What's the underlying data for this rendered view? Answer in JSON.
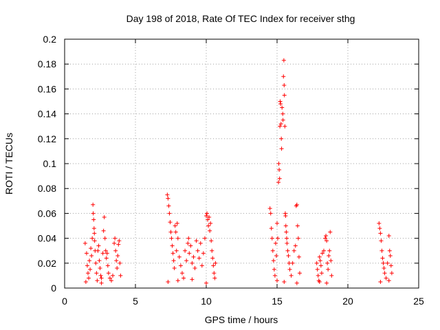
{
  "chart_data": {
    "type": "scatter",
    "title": "Day 198 of 2018, Rate Of TEC Index for receiver sthg",
    "xlabel": "GPS time / hours",
    "ylabel": "ROTI / TECUs",
    "xlim": [
      0,
      25
    ],
    "ylim": [
      0,
      0.2
    ],
    "grid": true,
    "marker": "+",
    "color": "#ff0000",
    "x_ticks": [
      0,
      5,
      10,
      15,
      20,
      25
    ],
    "x_tick_labels": [
      "0",
      "5",
      "10",
      "15",
      "20",
      "25"
    ],
    "y_ticks": [
      0,
      0.02,
      0.04,
      0.06,
      0.08,
      0.1,
      0.12,
      0.14,
      0.16,
      0.18,
      0.2
    ],
    "y_tick_labels": [
      "0",
      "0.02",
      "0.04",
      "0.06",
      "0.08",
      "0.1",
      "0.12",
      "0.14",
      "0.16",
      "0.18",
      "0.2"
    ],
    "series": [
      {
        "name": "ROTI",
        "points": [
          [
            1.45,
            0.036
          ],
          [
            1.55,
            0.028
          ],
          [
            1.6,
            0.018
          ],
          [
            1.65,
            0.012
          ],
          [
            1.7,
            0.008
          ],
          [
            1.75,
            0.022
          ],
          [
            1.8,
            0.015
          ],
          [
            1.85,
            0.032
          ],
          [
            1.9,
            0.026
          ],
          [
            1.95,
            0.04
          ],
          [
            2.0,
            0.067
          ],
          [
            2.02,
            0.06
          ],
          [
            2.05,
            0.055
          ],
          [
            2.08,
            0.048
          ],
          [
            2.1,
            0.044
          ],
          [
            2.12,
            0.038
          ],
          [
            2.15,
            0.03
          ],
          [
            2.2,
            0.02
          ],
          [
            2.25,
            0.012
          ],
          [
            2.3,
            0.006
          ],
          [
            2.35,
            0.03
          ],
          [
            2.4,
            0.034
          ],
          [
            2.45,
            0.022
          ],
          [
            2.5,
            0.016
          ],
          [
            2.55,
            0.01
          ],
          [
            2.6,
            0.008
          ],
          [
            2.7,
            0.028
          ],
          [
            2.75,
            0.046
          ],
          [
            2.8,
            0.057
          ],
          [
            2.85,
            0.04
          ],
          [
            2.9,
            0.03
          ],
          [
            2.95,
            0.024
          ],
          [
            3.0,
            0.028
          ],
          [
            3.05,
            0.018
          ],
          [
            3.1,
            0.012
          ],
          [
            3.2,
            0.008
          ],
          [
            3.3,
            0.006
          ],
          [
            3.4,
            0.01
          ],
          [
            3.5,
            0.036
          ],
          [
            3.55,
            0.04
          ],
          [
            3.6,
            0.03
          ],
          [
            3.65,
            0.022
          ],
          [
            3.7,
            0.016
          ],
          [
            3.75,
            0.026
          ],
          [
            3.8,
            0.035
          ],
          [
            3.85,
            0.038
          ],
          [
            3.9,
            0.02
          ],
          [
            3.95,
            0.01
          ],
          [
            1.5,
            0.005
          ],
          [
            2.6,
            0.004
          ],
          [
            7.25,
            0.075
          ],
          [
            7.3,
            0.072
          ],
          [
            7.35,
            0.066
          ],
          [
            7.4,
            0.06
          ],
          [
            7.45,
            0.053
          ],
          [
            7.5,
            0.045
          ],
          [
            7.55,
            0.04
          ],
          [
            7.6,
            0.034
          ],
          [
            7.65,
            0.028
          ],
          [
            7.7,
            0.022
          ],
          [
            7.75,
            0.016
          ],
          [
            7.8,
            0.05
          ],
          [
            7.85,
            0.045
          ],
          [
            7.9,
            0.03
          ],
          [
            7.95,
            0.052
          ],
          [
            8.0,
            0.04
          ],
          [
            8.1,
            0.025
          ],
          [
            8.2,
            0.018
          ],
          [
            8.3,
            0.012
          ],
          [
            8.4,
            0.008
          ],
          [
            8.5,
            0.03
          ],
          [
            8.6,
            0.022
          ],
          [
            8.7,
            0.036
          ],
          [
            8.75,
            0.04
          ],
          [
            8.8,
            0.028
          ],
          [
            8.9,
            0.034
          ],
          [
            9.0,
            0.02
          ],
          [
            9.1,
            0.025
          ],
          [
            9.2,
            0.016
          ],
          [
            9.3,
            0.038
          ],
          [
            9.4,
            0.03
          ],
          [
            9.5,
            0.024
          ],
          [
            9.6,
            0.036
          ],
          [
            9.7,
            0.018
          ],
          [
            9.8,
            0.028
          ],
          [
            9.9,
            0.04
          ],
          [
            10.0,
            0.058
          ],
          [
            10.05,
            0.06
          ],
          [
            10.1,
            0.055
          ],
          [
            10.15,
            0.05
          ],
          [
            10.2,
            0.057
          ],
          [
            10.25,
            0.046
          ],
          [
            10.3,
            0.052
          ],
          [
            10.35,
            0.038
          ],
          [
            10.4,
            0.03
          ],
          [
            10.45,
            0.024
          ],
          [
            10.5,
            0.018
          ],
          [
            10.55,
            0.012
          ],
          [
            10.6,
            0.008
          ],
          [
            10.65,
            0.02
          ],
          [
            7.3,
            0.005
          ],
          [
            8.0,
            0.006
          ],
          [
            9.0,
            0.007
          ],
          [
            10.0,
            0.004
          ],
          [
            14.5,
            0.064
          ],
          [
            14.55,
            0.06
          ],
          [
            14.6,
            0.048
          ],
          [
            14.65,
            0.04
          ],
          [
            14.7,
            0.03
          ],
          [
            14.75,
            0.022
          ],
          [
            14.8,
            0.015
          ],
          [
            14.85,
            0.01
          ],
          [
            14.9,
            0.036
          ],
          [
            14.95,
            0.026
          ],
          [
            15.0,
            0.052
          ],
          [
            15.05,
            0.04
          ],
          [
            15.1,
            0.085
          ],
          [
            15.12,
            0.1
          ],
          [
            15.15,
            0.095
          ],
          [
            15.18,
            0.088
          ],
          [
            15.2,
            0.13
          ],
          [
            15.22,
            0.15
          ],
          [
            15.25,
            0.148
          ],
          [
            15.28,
            0.132
          ],
          [
            15.3,
            0.12
          ],
          [
            15.32,
            0.112
          ],
          [
            15.35,
            0.145
          ],
          [
            15.4,
            0.14
          ],
          [
            15.42,
            0.135
          ],
          [
            15.45,
            0.17
          ],
          [
            15.48,
            0.183
          ],
          [
            15.5,
            0.163
          ],
          [
            15.52,
            0.155
          ],
          [
            15.55,
            0.13
          ],
          [
            15.58,
            0.06
          ],
          [
            15.6,
            0.058
          ],
          [
            15.62,
            0.05
          ],
          [
            15.65,
            0.045
          ],
          [
            15.68,
            0.04
          ],
          [
            15.7,
            0.036
          ],
          [
            15.75,
            0.03
          ],
          [
            15.8,
            0.026
          ],
          [
            15.85,
            0.02
          ],
          [
            15.9,
            0.015
          ],
          [
            16.0,
            0.01
          ],
          [
            16.1,
            0.02
          ],
          [
            16.2,
            0.03
          ],
          [
            16.3,
            0.034
          ],
          [
            16.35,
            0.066
          ],
          [
            16.4,
            0.067
          ],
          [
            16.45,
            0.05
          ],
          [
            16.5,
            0.04
          ],
          [
            16.55,
            0.025
          ],
          [
            16.6,
            0.012
          ],
          [
            15.0,
            0.006
          ],
          [
            15.5,
            0.005
          ],
          [
            16.4,
            0.004
          ],
          [
            17.8,
            0.02
          ],
          [
            17.85,
            0.015
          ],
          [
            17.9,
            0.01
          ],
          [
            17.95,
            0.006
          ],
          [
            18.0,
            0.025
          ],
          [
            18.05,
            0.022
          ],
          [
            18.1,
            0.018
          ],
          [
            18.15,
            0.012
          ],
          [
            18.2,
            0.028
          ],
          [
            18.3,
            0.03
          ],
          [
            18.4,
            0.04
          ],
          [
            18.45,
            0.042
          ],
          [
            18.5,
            0.038
          ],
          [
            18.55,
            0.02
          ],
          [
            18.6,
            0.015
          ],
          [
            18.65,
            0.026
          ],
          [
            18.7,
            0.03
          ],
          [
            18.75,
            0.045
          ],
          [
            18.8,
            0.022
          ],
          [
            18.85,
            0.01
          ],
          [
            18.0,
            0.005
          ],
          [
            18.5,
            0.004
          ],
          [
            22.2,
            0.052
          ],
          [
            22.25,
            0.048
          ],
          [
            22.3,
            0.044
          ],
          [
            22.35,
            0.038
          ],
          [
            22.4,
            0.03
          ],
          [
            22.45,
            0.024
          ],
          [
            22.5,
            0.02
          ],
          [
            22.55,
            0.016
          ],
          [
            22.6,
            0.012
          ],
          [
            22.7,
            0.008
          ],
          [
            22.8,
            0.02
          ],
          [
            22.9,
            0.042
          ],
          [
            22.95,
            0.03
          ],
          [
            23.0,
            0.026
          ],
          [
            23.05,
            0.018
          ],
          [
            23.1,
            0.012
          ],
          [
            22.3,
            0.005
          ],
          [
            22.9,
            0.006
          ]
        ]
      }
    ]
  }
}
